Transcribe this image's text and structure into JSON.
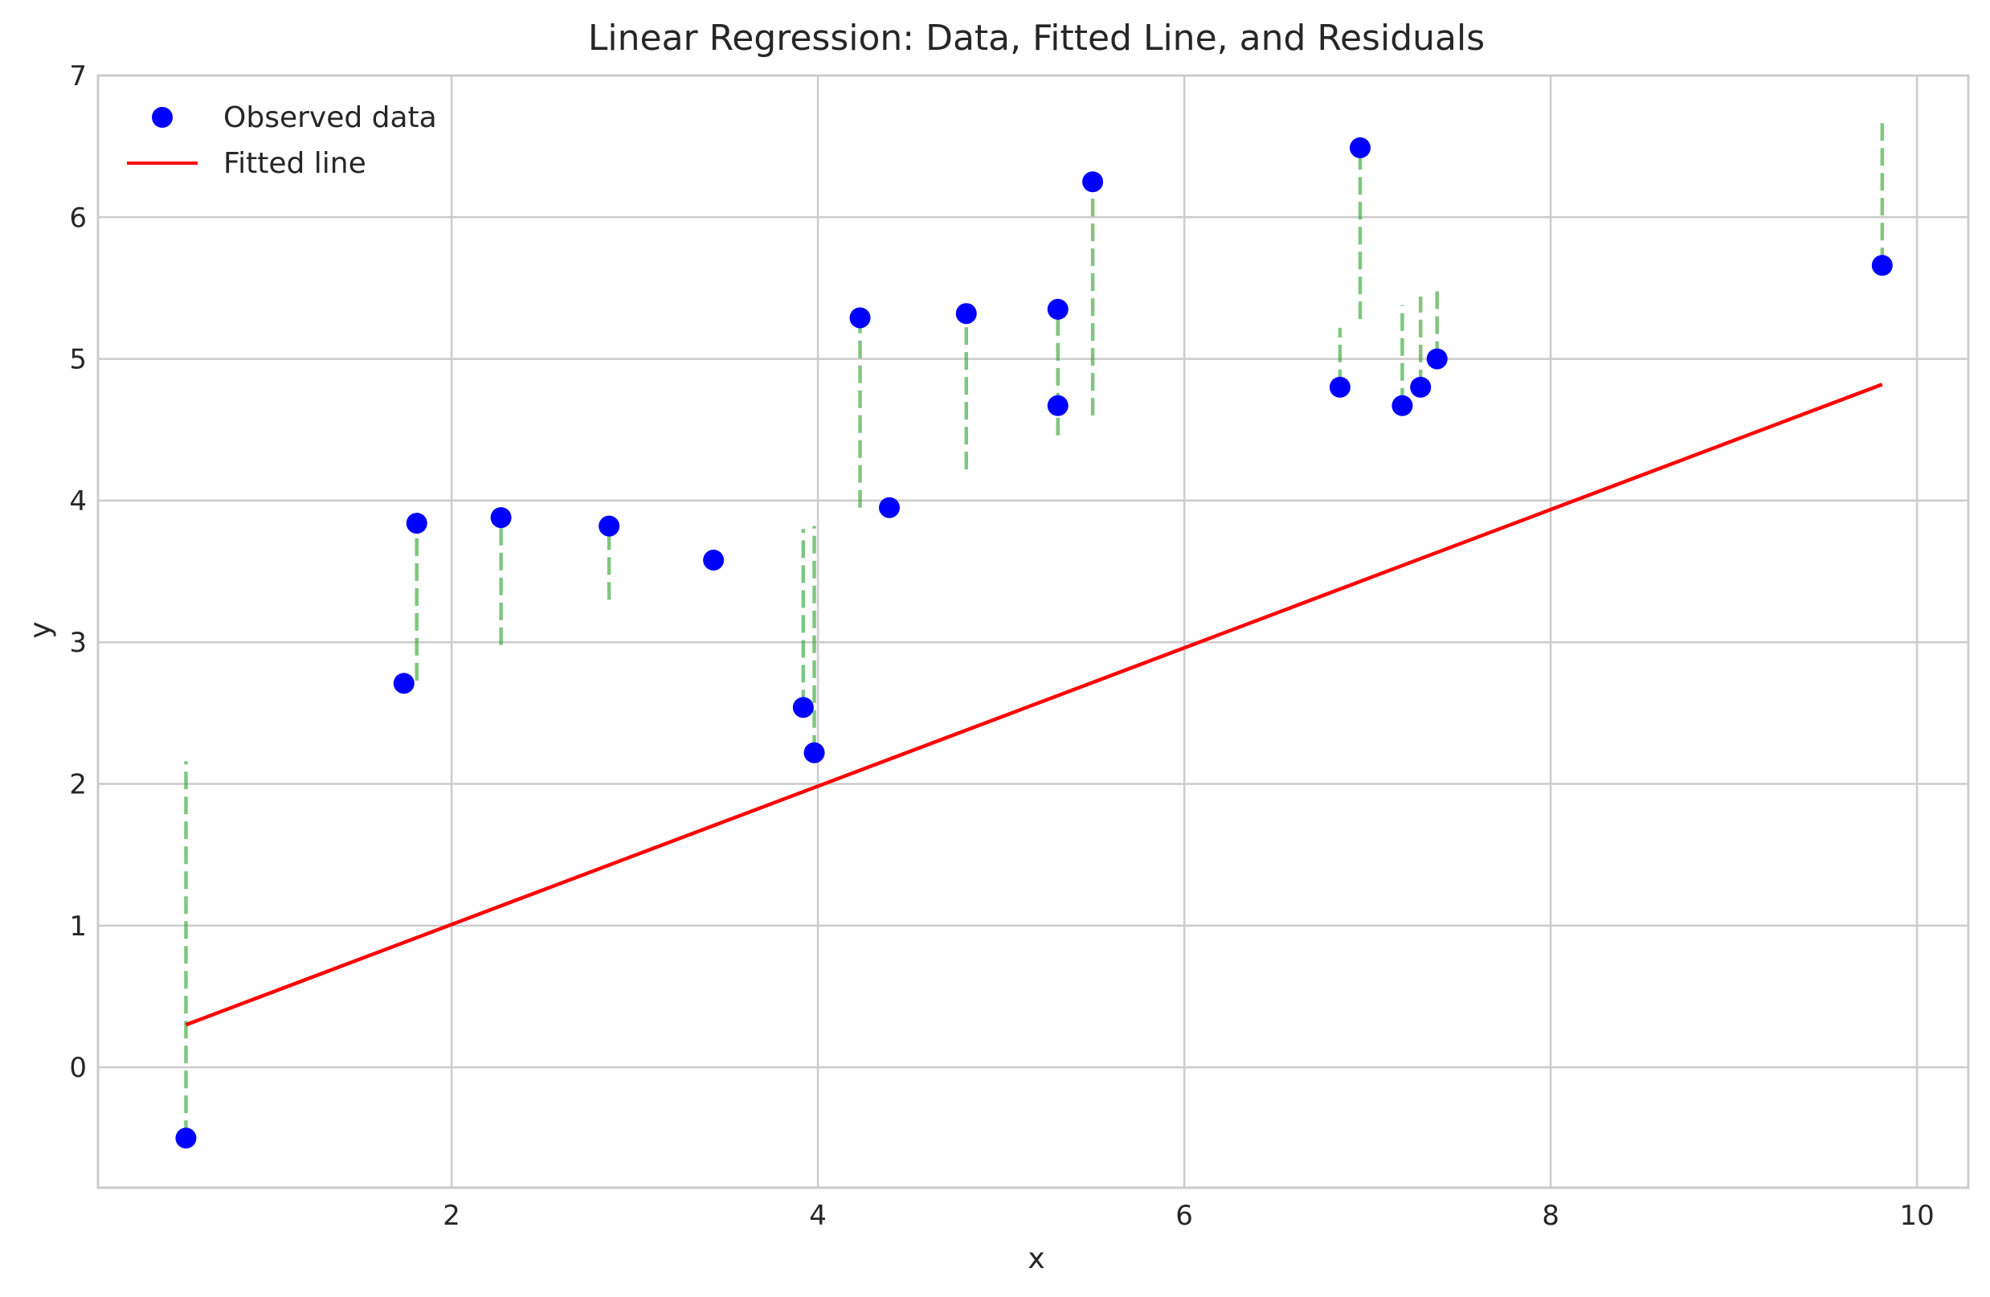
{
  "chart_data": {
    "type": "scatter",
    "title": "Linear Regression: Data, Fitted Line, and Residuals",
    "xlabel": "x",
    "ylabel": "y",
    "xlim": [
      0.07,
      10.28
    ],
    "ylim": [
      -0.85,
      7.0
    ],
    "x_ticks": [
      2,
      4,
      6,
      8,
      10
    ],
    "y_ticks": [
      0,
      1,
      2,
      3,
      4,
      5,
      6,
      7
    ],
    "grid": true,
    "legend_position": "upper-left",
    "legend": [
      {
        "label": "Observed data",
        "marker": "circle",
        "color": "#0000ff"
      },
      {
        "label": "Fitted line",
        "marker": "line",
        "color": "#ff0000"
      }
    ],
    "series": [
      {
        "name": "Observed data",
        "kind": "scatter",
        "color": "#0000ff",
        "points": [
          {
            "x": 0.55,
            "y": -0.5
          },
          {
            "x": 1.74,
            "y": 2.71
          },
          {
            "x": 1.81,
            "y": 3.84
          },
          {
            "x": 2.27,
            "y": 3.88
          },
          {
            "x": 2.86,
            "y": 3.82
          },
          {
            "x": 3.43,
            "y": 3.58
          },
          {
            "x": 3.92,
            "y": 2.54
          },
          {
            "x": 3.98,
            "y": 2.22
          },
          {
            "x": 4.23,
            "y": 5.29
          },
          {
            "x": 4.39,
            "y": 3.95
          },
          {
            "x": 4.81,
            "y": 5.32
          },
          {
            "x": 5.31,
            "y": 5.35
          },
          {
            "x": 5.31,
            "y": 4.67
          },
          {
            "x": 5.5,
            "y": 6.25
          },
          {
            "x": 6.85,
            "y": 4.8
          },
          {
            "x": 6.96,
            "y": 6.49
          },
          {
            "x": 7.19,
            "y": 4.67
          },
          {
            "x": 7.29,
            "y": 4.8
          },
          {
            "x": 7.38,
            "y": 5.0
          },
          {
            "x": 9.81,
            "y": 5.66
          }
        ]
      },
      {
        "name": "Fitted line",
        "kind": "line",
        "color": "#ff0000",
        "points": [
          {
            "x": 0.55,
            "y": 0.3
          },
          {
            "x": 9.81,
            "y": 4.82
          }
        ]
      },
      {
        "name": "Residuals",
        "kind": "residual-segments",
        "color": "#2ca02c",
        "segments": [
          {
            "x": 0.55,
            "y0": -0.5,
            "y1": 2.16
          },
          {
            "x": 1.81,
            "y0": 2.73,
            "y1": 3.84
          },
          {
            "x": 2.27,
            "y0": 2.98,
            "y1": 3.88
          },
          {
            "x": 2.86,
            "y0": 3.3,
            "y1": 3.82
          },
          {
            "x": 3.92,
            "y0": 2.54,
            "y1": 3.8
          },
          {
            "x": 3.98,
            "y0": 2.22,
            "y1": 3.82
          },
          {
            "x": 4.23,
            "y0": 3.95,
            "y1": 5.29
          },
          {
            "x": 4.81,
            "y0": 4.22,
            "y1": 5.32
          },
          {
            "x": 5.31,
            "y0": 4.46,
            "y1": 5.35
          },
          {
            "x": 5.5,
            "y0": 4.6,
            "y1": 6.25
          },
          {
            "x": 6.85,
            "y0": 4.8,
            "y1": 5.22
          },
          {
            "x": 6.96,
            "y0": 5.28,
            "y1": 6.49
          },
          {
            "x": 7.19,
            "y0": 4.67,
            "y1": 5.38
          },
          {
            "x": 7.29,
            "y0": 4.8,
            "y1": 5.44
          },
          {
            "x": 7.38,
            "y0": 5.0,
            "y1": 5.5
          },
          {
            "x": 9.81,
            "y0": 5.66,
            "y1": 6.67
          }
        ]
      }
    ]
  },
  "colors": {
    "grid": "#cccccc",
    "frame": "#cccccc",
    "text": "#262626"
  }
}
